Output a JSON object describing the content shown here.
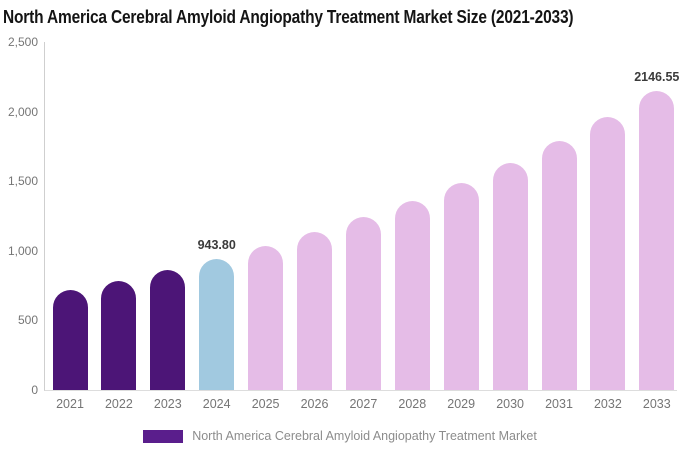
{
  "title": "North America Cerebral Amyloid Angiopathy Treatment Market Size (2021-2033)",
  "colors": {
    "historical_bar": "#4C1577",
    "base_year_bar": "#A1C9E0",
    "forecast_bar": "#E5BCE7",
    "legend_swatch": "#5A1E8C",
    "axis_line": "#cfcfcf",
    "axis_text": "#757575",
    "value_label_text": "#3b3b3b",
    "title_text": "#141414",
    "legend_text": "#8c8c8c",
    "background": "#ffffff"
  },
  "chart_data": {
    "type": "bar",
    "title": "North America Cerebral Amyloid Angiopathy Treatment Market Size (2021-2033)",
    "xlabel": "",
    "ylabel": "",
    "categories": [
      "2021",
      "2022",
      "2023",
      "2024",
      "2025",
      "2026",
      "2027",
      "2028",
      "2029",
      "2030",
      "2031",
      "2032",
      "2033"
    ],
    "values": [
      717.66,
      786.27,
      861.44,
      943.8,
      1034.03,
      1132.89,
      1241.19,
      1359.85,
      1489.85,
      1632.28,
      1788.32,
      1959.28,
      2146.55
    ],
    "bar_colors": [
      "#4C1577",
      "#4C1577",
      "#4C1577",
      "#A1C9E0",
      "#E5BCE7",
      "#E5BCE7",
      "#E5BCE7",
      "#E5BCE7",
      "#E5BCE7",
      "#E5BCE7",
      "#E5BCE7",
      "#E5BCE7",
      "#E5BCE7"
    ],
    "value_labels": [
      {
        "index": 3,
        "category": "2024",
        "text": "943.80"
      },
      {
        "index": 12,
        "category": "2033",
        "text": "2146.55"
      }
    ],
    "ylim": [
      0,
      2500
    ],
    "ytick_values": [
      0,
      500,
      1000,
      1500,
      2000,
      2500
    ],
    "ytick_labels": [
      "0",
      "500",
      "1,000",
      "1,500",
      "2,000",
      "2,500"
    ],
    "grid": false,
    "legend_position": "bottom",
    "legend": [
      {
        "label": "North America Cerebral Amyloid Angiopathy Treatment Market",
        "color": "#5A1E8C"
      }
    ]
  },
  "legend": {
    "label": "North America Cerebral Amyloid Angiopathy Treatment Market"
  }
}
